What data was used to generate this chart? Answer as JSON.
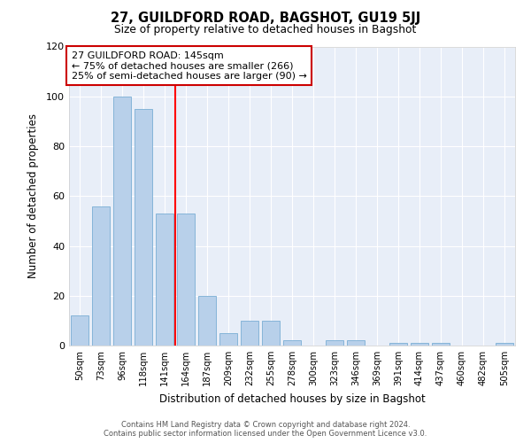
{
  "title": "27, GUILDFORD ROAD, BAGSHOT, GU19 5JJ",
  "subtitle": "Size of property relative to detached houses in Bagshot",
  "xlabel": "Distribution of detached houses by size in Bagshot",
  "ylabel": "Number of detached properties",
  "categories": [
    "50sqm",
    "73sqm",
    "96sqm",
    "118sqm",
    "141sqm",
    "164sqm",
    "187sqm",
    "209sqm",
    "232sqm",
    "255sqm",
    "278sqm",
    "300sqm",
    "323sqm",
    "346sqm",
    "369sqm",
    "391sqm",
    "414sqm",
    "437sqm",
    "460sqm",
    "482sqm",
    "505sqm"
  ],
  "values": [
    12,
    56,
    100,
    95,
    53,
    53,
    20,
    5,
    10,
    10,
    2,
    0,
    2,
    2,
    0,
    1,
    1,
    1,
    0,
    0,
    1
  ],
  "bar_color": "#b8d0ea",
  "bar_edge_color": "#7aadd4",
  "redline_x": 4.5,
  "ylim": [
    0,
    120
  ],
  "yticks": [
    0,
    20,
    40,
    60,
    80,
    100,
    120
  ],
  "annotation_line1": "27 GUILDFORD ROAD: 145sqm",
  "annotation_line2": "← 75% of detached houses are smaller (266)",
  "annotation_line3": "25% of semi-detached houses are larger (90) →",
  "annotation_box_facecolor": "#ffffff",
  "annotation_box_edgecolor": "#cc0000",
  "plot_bg_color": "#e8eef8",
  "fig_bg_color": "#ffffff",
  "grid_color": "#ffffff",
  "footer_line1": "Contains HM Land Registry data © Crown copyright and database right 2024.",
  "footer_line2": "Contains public sector information licensed under the Open Government Licence v3.0."
}
